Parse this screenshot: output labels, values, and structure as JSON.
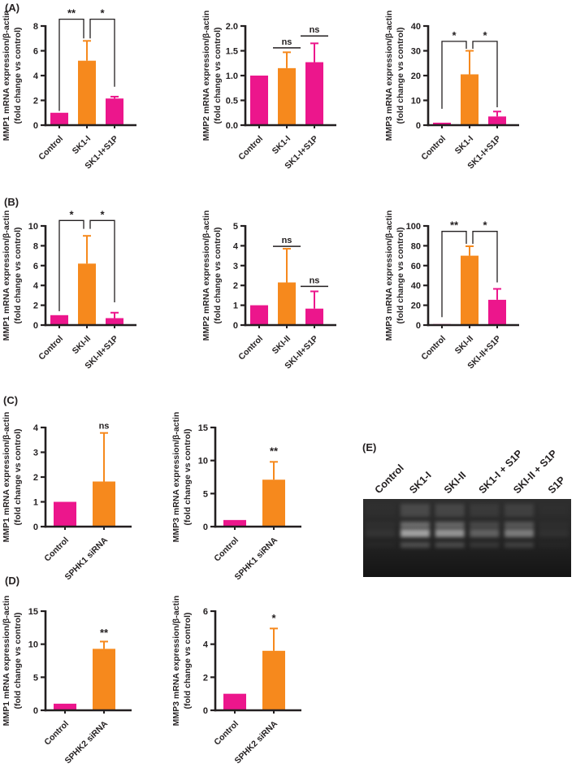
{
  "panels": {
    "A": "(A)",
    "B": "(B)",
    "C": "(C)",
    "D": "(D)",
    "E": "(E)"
  },
  "colors": {
    "pink": "#EC168C",
    "orange": "#F6891D",
    "axis": "#231F20",
    "gel_bg": "#1F1F1F"
  },
  "chart_data": [
    {
      "id": "A1",
      "type": "bar",
      "ylabel": [
        "MMP1 mRNA expression/β-actin",
        "(fold change vs control)"
      ],
      "categories": [
        "Control",
        "SK1-I",
        "SK1-I+S1P"
      ],
      "values": [
        1.0,
        5.2,
        2.15
      ],
      "errors": [
        0,
        1.6,
        0.15
      ],
      "bar_colors": [
        "pink",
        "orange",
        "pink"
      ],
      "ylim": [
        0,
        8
      ],
      "yticks": [
        "0",
        "2",
        "4",
        "6",
        "8"
      ],
      "annotations": [
        {
          "type": "bracket",
          "label": "**",
          "from": 0,
          "to": 1,
          "y_from": 1.15,
          "y_top": 8.55,
          "y_to": 7.0,
          "dx_to": -4
        },
        {
          "type": "bracket",
          "label": "*",
          "from": 1,
          "to": 2,
          "y_from": 7.0,
          "y_top": 8.55,
          "y_to": 3.1,
          "dx_from": 4
        }
      ]
    },
    {
      "id": "A2",
      "type": "bar",
      "ylabel": [
        "MMP2 mRNA expression/β-actin",
        "(fold change vs control)"
      ],
      "categories": [
        "Control",
        "SK1-I",
        "SK1-I+S1P"
      ],
      "values": [
        1.0,
        1.15,
        1.27
      ],
      "errors": [
        0,
        0.32,
        0.38
      ],
      "bar_colors": [
        "pink",
        "orange",
        "pink"
      ],
      "ylim": [
        0,
        2
      ],
      "yticks": [
        "0.0",
        "0.5",
        "1.0",
        "1.5",
        "2.0"
      ],
      "annotations": [
        {
          "type": "ns-line",
          "label": "ns",
          "bar": 1,
          "y": 1.56
        },
        {
          "type": "ns-line",
          "label": "ns",
          "bar": 2,
          "y": 1.8
        }
      ]
    },
    {
      "id": "A3",
      "type": "bar",
      "ylabel": [
        "MMP3 mRNA expression/β-actin",
        "(fold change vs control)"
      ],
      "categories": [
        "Control",
        "SK1-I",
        "SK1-I+S1P"
      ],
      "values": [
        1.0,
        20.5,
        3.5
      ],
      "errors": [
        0,
        9.5,
        2.0
      ],
      "bar_colors": [
        "pink",
        "orange",
        "pink"
      ],
      "ylim": [
        0,
        40
      ],
      "yticks": [
        "0",
        "10",
        "20",
        "30",
        "40"
      ],
      "annotations": [
        {
          "type": "bracket",
          "label": "*",
          "from": 0,
          "to": 1,
          "y_from": 6.6,
          "y_top": 33.8,
          "y_to": 30.8,
          "dx_to": -4
        },
        {
          "type": "bracket",
          "label": "*",
          "from": 1,
          "to": 2,
          "y_from": 30.8,
          "y_top": 33.8,
          "y_to": 7.2,
          "dx_from": 4
        }
      ]
    },
    {
      "id": "B1",
      "type": "bar",
      "ylabel": [
        "MMP1 mRNA expression/β-actin",
        "(fold change vs control)"
      ],
      "categories": [
        "Control",
        "SKI-II",
        "SKI-II+S1P"
      ],
      "values": [
        1.0,
        6.2,
        0.7
      ],
      "errors": [
        0,
        2.8,
        0.55
      ],
      "bar_colors": [
        "pink",
        "orange",
        "pink"
      ],
      "ylim": [
        0,
        10
      ],
      "yticks": [
        "0",
        "2",
        "4",
        "6",
        "8",
        "10"
      ],
      "annotations": [
        {
          "type": "bracket",
          "label": "*",
          "from": 0,
          "to": 1,
          "y_from": 1.4,
          "y_top": 10.55,
          "y_to": 9.7,
          "dx_to": -4
        },
        {
          "type": "bracket",
          "label": "*",
          "from": 1,
          "to": 2,
          "y_from": 9.7,
          "y_top": 10.55,
          "y_to": 2.3,
          "dx_from": 4
        }
      ]
    },
    {
      "id": "B2",
      "type": "bar",
      "ylabel": [
        "MMP2 mRNA expression/β-actin",
        "(fold change vs control)"
      ],
      "categories": [
        "Control",
        "SKI-II",
        "SKI-II+S1P"
      ],
      "values": [
        1.0,
        2.15,
        0.83
      ],
      "errors": [
        0,
        1.7,
        0.87
      ],
      "bar_colors": [
        "pink",
        "orange",
        "pink"
      ],
      "ylim": [
        0,
        5
      ],
      "yticks": [
        "0",
        "1",
        "2",
        "3",
        "4",
        "5"
      ],
      "annotations": [
        {
          "type": "ns-line",
          "label": "ns",
          "bar": 1,
          "y": 3.97
        },
        {
          "type": "ns-line",
          "label": "ns",
          "bar": 2,
          "y": 1.95
        }
      ]
    },
    {
      "id": "B3",
      "type": "bar",
      "ylabel": [
        "MMP3 mRNA expression/β-actin",
        "(fold change vs control)"
      ],
      "categories": [
        "Control",
        "SKI-II",
        "SKI-II+S1P"
      ],
      "values": [
        1.0,
        70,
        25.5
      ],
      "errors": [
        0,
        9.5,
        11
      ],
      "bar_colors": [
        "pink",
        "orange",
        "pink"
      ],
      "ylim": [
        0,
        100
      ],
      "yticks": [
        "0",
        "20",
        "40",
        "60",
        "80",
        "100"
      ],
      "annotations": [
        {
          "type": "bracket",
          "label": "**",
          "from": 0,
          "to": 1,
          "y_from": 8,
          "y_top": 94.5,
          "y_to": 82,
          "dx_to": -4
        },
        {
          "type": "bracket",
          "label": "*",
          "from": 1,
          "to": 2,
          "y_from": 82,
          "y_top": 94.5,
          "y_to": 43,
          "dx_from": 4
        }
      ]
    },
    {
      "id": "C1",
      "type": "bar",
      "ylabel": [
        "MMP1 mRNA expression/β-actin",
        "(fold change vs control)"
      ],
      "categories": [
        "Control",
        "SPHK1 siRNA"
      ],
      "values": [
        1.0,
        1.82
      ],
      "errors": [
        0,
        1.96
      ],
      "bar_colors": [
        "pink",
        "orange"
      ],
      "ylim": [
        0,
        4
      ],
      "yticks": [
        "0",
        "1",
        "2",
        "3",
        "4"
      ],
      "annotations": [
        {
          "type": "text",
          "label": "ns",
          "bar": 1,
          "y": 3.95
        }
      ]
    },
    {
      "id": "C2",
      "type": "bar",
      "ylabel": [
        "MMP3 mRNA expression/β-actin",
        "(fold change vs control)"
      ],
      "categories": [
        "Control",
        "SPHK1 siRNA"
      ],
      "values": [
        1.0,
        7.1
      ],
      "errors": [
        0,
        2.7
      ],
      "bar_colors": [
        "pink",
        "orange"
      ],
      "ylim": [
        0,
        15
      ],
      "yticks": [
        "0",
        "5",
        "10",
        "15"
      ],
      "annotations": [
        {
          "type": "text",
          "label": "**",
          "bar": 1,
          "y": 10.9
        }
      ]
    },
    {
      "id": "D1",
      "type": "bar",
      "ylabel": [
        "MMP1 mRNA expression/β-actin",
        "(fold change vs control)"
      ],
      "categories": [
        "Control",
        "SPHK2 siRNA"
      ],
      "values": [
        1.0,
        9.3
      ],
      "errors": [
        0,
        1.1
      ],
      "bar_colors": [
        "pink",
        "orange"
      ],
      "ylim": [
        0,
        15
      ],
      "yticks": [
        "0",
        "5",
        "10",
        "15"
      ],
      "annotations": [
        {
          "type": "text",
          "label": "**",
          "bar": 1,
          "y": 11.2
        }
      ]
    },
    {
      "id": "D2",
      "type": "bar",
      "ylabel": [
        "MMP3 mRNA expression/β-actin",
        "(fold change vs control)"
      ],
      "categories": [
        "Control",
        "SPHK2 siRNA"
      ],
      "values": [
        1.0,
        3.6
      ],
      "errors": [
        0,
        1.35
      ],
      "bar_colors": [
        "pink",
        "orange"
      ],
      "ylim": [
        0,
        6
      ],
      "yticks": [
        "0",
        "2",
        "4",
        "6"
      ],
      "annotations": [
        {
          "type": "text",
          "label": "*",
          "bar": 1,
          "y": 5.35
        }
      ]
    }
  ],
  "gel": {
    "panel": "E",
    "lanes": [
      {
        "label": "Control",
        "intensity": 0.1
      },
      {
        "label": "SK1-I",
        "intensity": 0.95
      },
      {
        "label": "SKI-II",
        "intensity": 0.85
      },
      {
        "label": "SK1-I + S1P",
        "intensity": 0.45
      },
      {
        "label": "SKI-II + S1P",
        "intensity": 0.65
      },
      {
        "label": "S1P",
        "intensity": 0.08
      }
    ]
  }
}
